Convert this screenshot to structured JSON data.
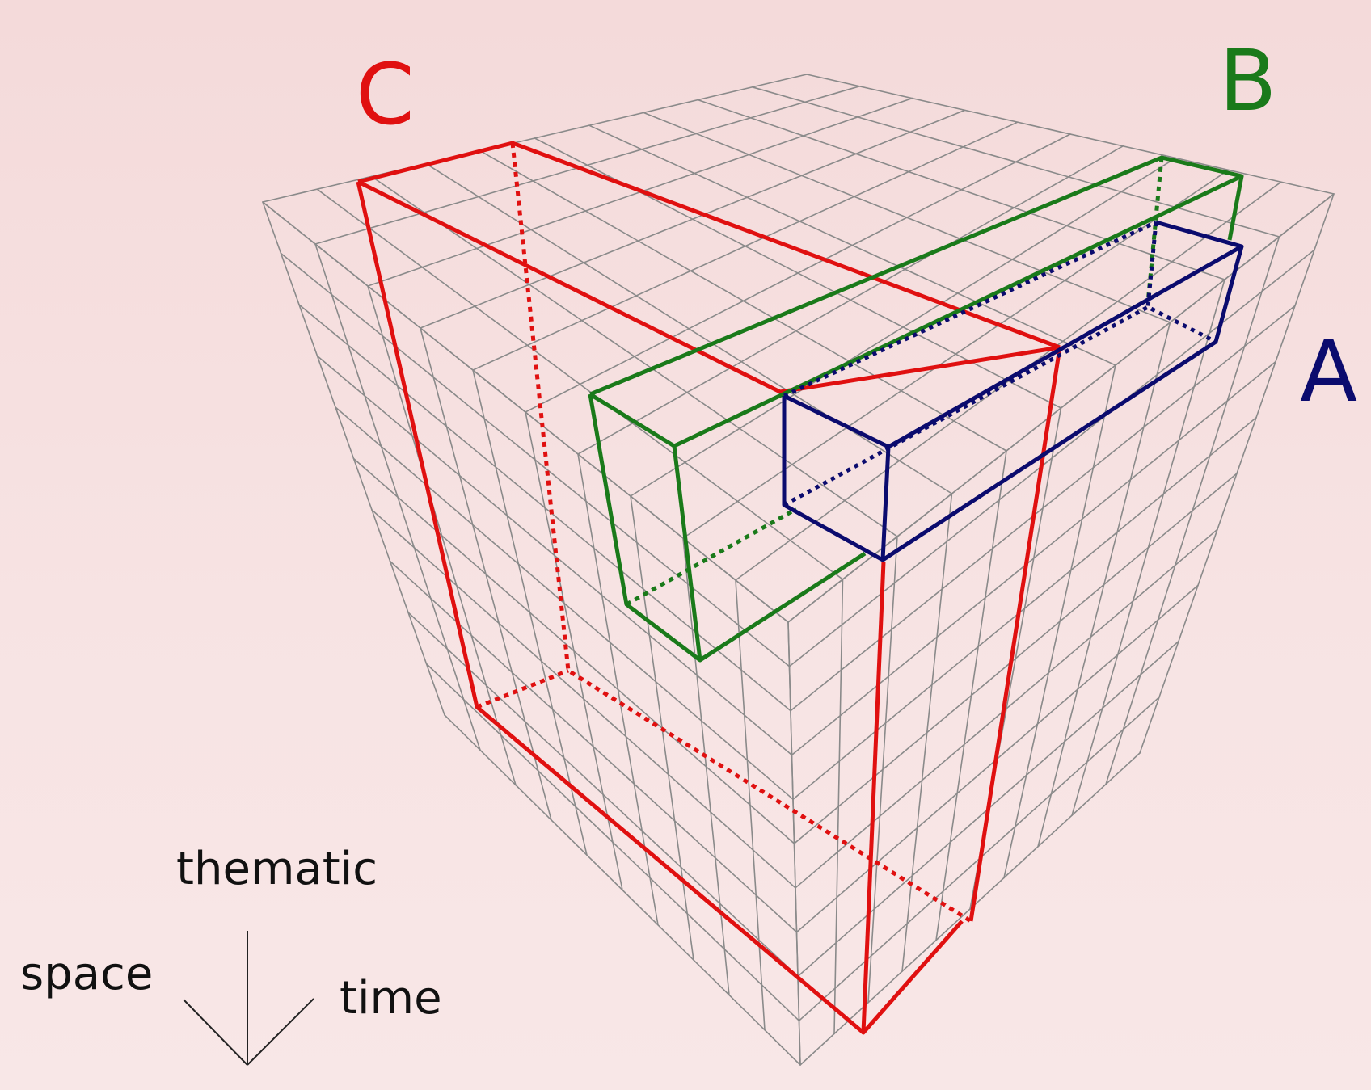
{
  "labels": {
    "a": "A",
    "b": "B",
    "c": "C"
  },
  "axes": {
    "thematic": "thematic",
    "space": "space",
    "time": "time"
  },
  "colors": {
    "background": "#f6dede",
    "grid": "#8a8a8a",
    "a": "#0b0b6e",
    "b": "#1a7a1a",
    "c": "#e01010",
    "axis": "#222222"
  },
  "grid_divisions": 10
}
